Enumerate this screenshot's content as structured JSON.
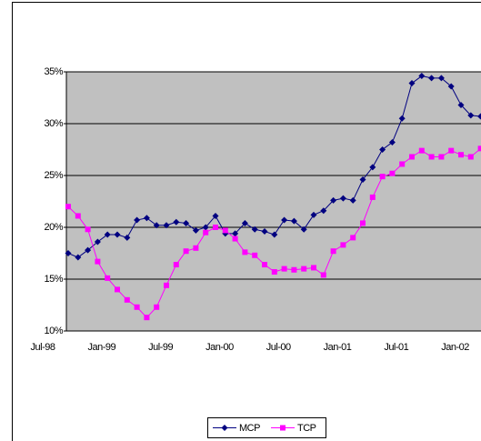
{
  "chart_data": {
    "type": "line",
    "categories": [
      "Jul-98",
      null,
      null,
      null,
      null,
      null,
      "Jan-99",
      null,
      null,
      null,
      null,
      null,
      "Jul-99",
      null,
      null,
      null,
      null,
      null,
      "Jan-00",
      null,
      null,
      null,
      null,
      null,
      "Jul-00",
      null,
      null,
      null,
      null,
      null,
      "Jan-01",
      null,
      null,
      null,
      null,
      null,
      "Jul-01",
      null,
      null,
      null,
      null,
      null,
      "Jan-02"
    ],
    "series": [
      {
        "name": "MCP",
        "color": "#000080",
        "marker": "diamond",
        "values": [
          17.5,
          17.1,
          17.8,
          18.6,
          19.3,
          19.3,
          19.0,
          20.7,
          20.9,
          20.2,
          20.2,
          20.5,
          20.4,
          19.7,
          20.0,
          21.1,
          19.4,
          19.4,
          20.4,
          19.8,
          19.6,
          19.3,
          20.7,
          20.6,
          19.8,
          21.2,
          21.6,
          22.6,
          22.8,
          22.6,
          24.6,
          25.8,
          27.5,
          28.2,
          30.5,
          33.9,
          34.6,
          34.4,
          34.4,
          33.6,
          31.8,
          30.8,
          30.7
        ]
      },
      {
        "name": "TCP",
        "color": "#ff00ff",
        "marker": "square",
        "values": [
          22.0,
          21.1,
          19.8,
          16.7,
          15.1,
          14.0,
          13.0,
          12.3,
          11.3,
          12.3,
          14.4,
          16.4,
          17.7,
          18.0,
          19.5,
          20.0,
          19.7,
          18.9,
          17.6,
          17.3,
          16.4,
          15.7,
          16.0,
          15.9,
          16.0,
          16.1,
          15.4,
          17.7,
          18.3,
          19.0,
          20.4,
          22.9,
          24.9,
          25.2,
          26.1,
          26.8,
          27.4,
          26.8,
          26.8,
          27.4,
          27.0,
          26.8,
          27.6
        ]
      }
    ],
    "ylim": [
      10,
      35
    ],
    "yticks": [
      {
        "value": 10,
        "label": "10%"
      },
      {
        "value": 15,
        "label": "15%"
      },
      {
        "value": 20,
        "label": "20%"
      },
      {
        "value": 25,
        "label": "25%"
      },
      {
        "value": 30,
        "label": "30%"
      },
      {
        "value": 35,
        "label": "35%"
      }
    ],
    "grid": true,
    "plot_background": "#c0c0c0",
    "legend": "bottom"
  }
}
